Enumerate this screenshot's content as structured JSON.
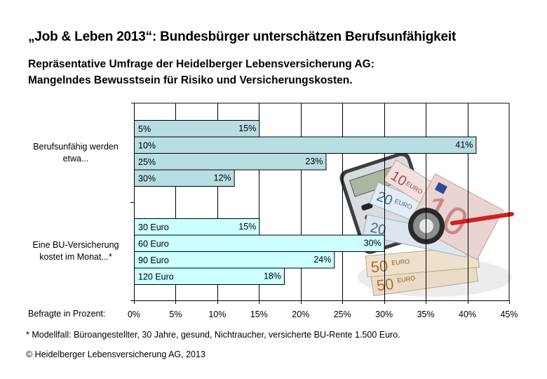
{
  "header": {
    "title": "„Job & Leben 2013“: Bundesbürger unterschätzen Berufsunfähigkeit",
    "subtitle_line1": "Repräsentative Umfrage der Heidelberger Lebensversicherung AG:",
    "subtitle_line2": "Mangelndes Bewusstsein für Risiko und Versicherungskosten."
  },
  "chart_data": {
    "type": "bar",
    "orientation": "horizontal",
    "title": "„Job & Leben 2013“: Bundesbürger unterschätzen Berufsunfähigkeit",
    "xlabel": "Befragte in Prozent:",
    "ylabel": "",
    "xlim": [
      0,
      45
    ],
    "x_ticks": [
      "0%",
      "5%",
      "10%",
      "15%",
      "20%",
      "25%",
      "30%",
      "35%",
      "40%",
      "45%"
    ],
    "x_tick_values": [
      0,
      5,
      10,
      15,
      20,
      25,
      30,
      35,
      40,
      45
    ],
    "grid": "vertical",
    "legend": "none",
    "groups": [
      {
        "label_line1": "Berufsunfähig werden",
        "label_line2": "etwa...",
        "color": "#B7DEE3",
        "bars": [
          {
            "category": "5%",
            "value": 15,
            "value_label": "15%"
          },
          {
            "category": "10%",
            "value": 41,
            "value_label": "41%"
          },
          {
            "category": "25%",
            "value": 23,
            "value_label": "23%"
          },
          {
            "category": "30%",
            "value": 12,
            "value_label": "12%"
          }
        ]
      },
      {
        "label_line1": "Eine BU-Versicherung",
        "label_line2": "kostet im Monat...*",
        "color": "#CCFFFF",
        "bars": [
          {
            "category": "30 Euro",
            "value": 15,
            "value_label": "15%"
          },
          {
            "category": "60 Euro",
            "value": 30,
            "value_label": "30%"
          },
          {
            "category": "90 Euro",
            "value": 24,
            "value_label": "24%"
          },
          {
            "category": "120 Euro",
            "value": 18,
            "value_label": "18%"
          }
        ]
      }
    ]
  },
  "footer": {
    "footnote": "* Modellfall: Büroangestellter, 30 Jahre, gesund, Nichtraucher, versicherte BU-Rente 1.500 Euro.",
    "copyright": "© Heidelberger Lebensversicherung AG, 2013"
  },
  "illustration": {
    "description": "calculator, euro banknotes and stethoscope",
    "note_values": [
      "10",
      "20",
      "20",
      "50",
      "50",
      "10"
    ],
    "note_currency": "EURO"
  }
}
